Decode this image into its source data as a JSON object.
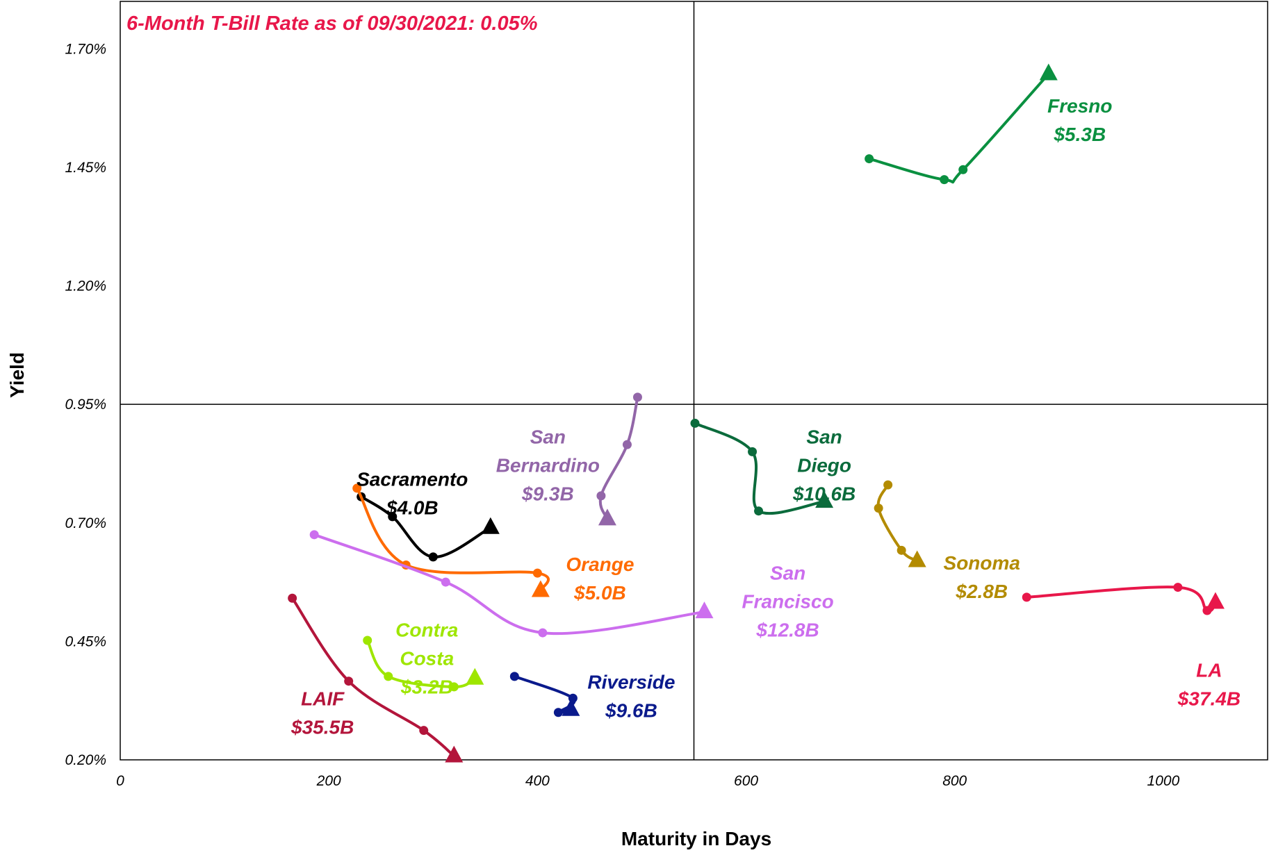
{
  "chart_data": {
    "type": "line",
    "annotation": "6-Month T-Bill Rate as of 09/30/2021: 0.05%",
    "annotation_color": "#e8174a",
    "xlabel": "Maturity in Days",
    "ylabel": "Yield",
    "xlim": [
      0,
      1100
    ],
    "ylim": [
      0.2,
      1.8
    ],
    "x_ticks": [
      0,
      200,
      400,
      600,
      800,
      1000
    ],
    "y_ticks": [
      0.2,
      0.45,
      0.7,
      0.95,
      1.2,
      1.45,
      1.7
    ],
    "x_tick_labels": [
      "0",
      "200",
      "400",
      "600",
      "800",
      "1000"
    ],
    "y_tick_labels": [
      "0.20%",
      "0.45%",
      "0.70%",
      "0.95%",
      "1.20%",
      "1.45%",
      "1.70%"
    ],
    "quadrant_lines": {
      "x": 550,
      "y": 0.95
    },
    "series": [
      {
        "name": "Fresno",
        "size": "$5.3B",
        "color": "#0a9040",
        "label_pos": [
          920,
          1.55
        ],
        "points": [
          [
            718,
            1.468
          ],
          [
            790,
            1.424
          ],
          [
            808,
            1.445
          ],
          [
            890,
            1.647
          ]
        ]
      },
      {
        "name": "San Diego",
        "size": "$10.6B",
        "color": "#0b6b3c",
        "label_pos": [
          675,
          0.822
        ],
        "points": [
          [
            551,
            0.91
          ],
          [
            606,
            0.85
          ],
          [
            612,
            0.725
          ],
          [
            675,
            0.745
          ]
        ]
      },
      {
        "name": "San Bernardino",
        "size": "$9.3B",
        "color": "#9266a8",
        "label_pos": [
          410,
          0.822
        ],
        "points": [
          [
            496,
            0.965
          ],
          [
            486,
            0.865
          ],
          [
            461,
            0.757
          ],
          [
            467,
            0.708
          ]
        ]
      },
      {
        "name": "Sacramento",
        "size": "$4.0B",
        "color": "#000000",
        "label_pos": [
          280,
          0.763
        ],
        "points": [
          [
            231,
            0.755
          ],
          [
            261,
            0.713
          ],
          [
            300,
            0.628
          ],
          [
            355,
            0.69
          ]
        ]
      },
      {
        "name": "Orange",
        "size": "$5.0B",
        "color": "#ff6a00",
        "label_pos": [
          460,
          0.583
        ],
        "points": [
          [
            227,
            0.773
          ],
          [
            274,
            0.611
          ],
          [
            400,
            0.594
          ],
          [
            403,
            0.557
          ]
        ]
      },
      {
        "name": "San Francisco",
        "size": "$12.8B",
        "color": "#cc6eee",
        "label_pos": [
          640,
          0.535
        ],
        "points": [
          [
            186,
            0.675
          ],
          [
            312,
            0.575
          ],
          [
            405,
            0.468
          ],
          [
            560,
            0.512
          ]
        ]
      },
      {
        "name": "Sonoma",
        "size": "$2.8B",
        "color": "#b38b00",
        "label_pos": [
          826,
          0.586
        ],
        "points": [
          [
            736,
            0.78
          ],
          [
            727,
            0.731
          ],
          [
            749,
            0.642
          ],
          [
            764,
            0.62
          ]
        ]
      },
      {
        "name": "LA",
        "size": "$37.4B",
        "color": "#e8174a",
        "label_pos": [
          1044,
          0.36
        ],
        "points": [
          [
            869,
            0.543
          ],
          [
            1014,
            0.564
          ],
          [
            1042,
            0.515
          ],
          [
            1050,
            0.532
          ]
        ]
      },
      {
        "name": "Contra Costa",
        "size": "$3.2B",
        "color": "#9ee600",
        "label_pos": [
          294,
          0.415
        ],
        "points": [
          [
            237,
            0.452
          ],
          [
            257,
            0.376
          ],
          [
            320,
            0.354
          ],
          [
            340,
            0.372
          ]
        ]
      },
      {
        "name": "Riverside",
        "size": "$9.6B",
        "color": "#0a1a8c",
        "label_pos": [
          490,
          0.335
        ],
        "points": [
          [
            378,
            0.376
          ],
          [
            434,
            0.33
          ],
          [
            420,
            0.3
          ],
          [
            432,
            0.306
          ]
        ]
      },
      {
        "name": "LAIF",
        "size": "$35.5B",
        "color": "#b3153b",
        "label_pos": [
          194,
          0.3
        ],
        "points": [
          [
            165,
            0.541
          ],
          [
            219,
            0.366
          ],
          [
            291,
            0.262
          ],
          [
            320,
            0.208
          ]
        ]
      }
    ]
  }
}
